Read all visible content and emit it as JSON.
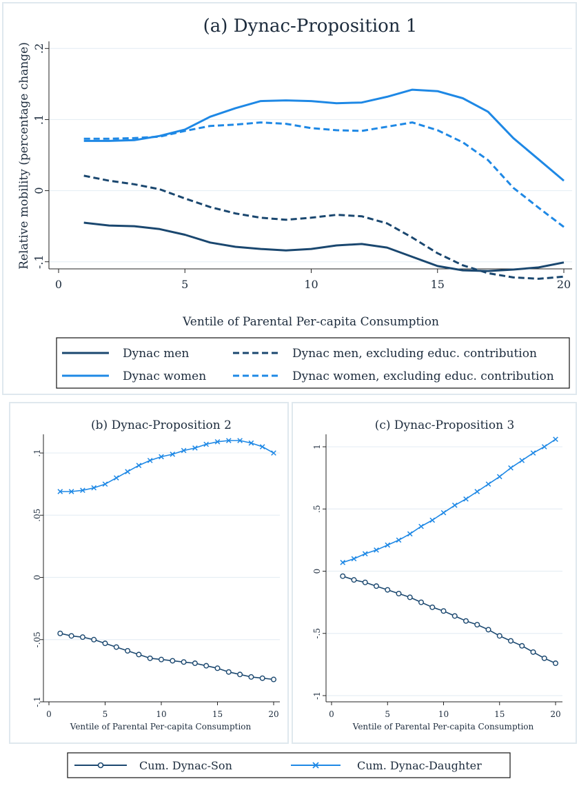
{
  "colors": {
    "men": "#1a476f",
    "women": "#1e88e5",
    "grid": "#e6eef4",
    "panel_border": "#dfe8ee",
    "axis": "#222222"
  },
  "chart_data": [
    {
      "id": "a",
      "type": "line",
      "title": "(a) Dynac-Proposition 1",
      "xlabel": "Ventile of Parental Per-capita Consumption",
      "ylabel": "Relative mobility (percentage change)",
      "xlim": [
        0,
        20
      ],
      "ylim": [
        -0.11,
        0.21
      ],
      "xticks": [
        0,
        5,
        10,
        15,
        20
      ],
      "xtick_labels": [
        "0",
        "5",
        "10",
        "15",
        "20"
      ],
      "yticks": [
        -0.1,
        0,
        0.1,
        0.2
      ],
      "ytick_labels": [
        "-.1",
        "0",
        ".1",
        ".2"
      ],
      "grid": true,
      "legend_position": "bottom",
      "x": [
        1,
        2,
        3,
        4,
        5,
        6,
        7,
        8,
        9,
        10,
        11,
        12,
        13,
        14,
        15,
        16,
        17,
        18,
        19,
        20
      ],
      "series": [
        {
          "name": "Dynac men",
          "color_key": "men",
          "dash": "solid",
          "values": [
            -0.045,
            -0.049,
            -0.05,
            -0.054,
            -0.062,
            -0.073,
            -0.079,
            -0.082,
            -0.084,
            -0.082,
            -0.077,
            -0.075,
            -0.08,
            -0.093,
            -0.106,
            -0.112,
            -0.113,
            -0.111,
            -0.108,
            -0.101
          ]
        },
        {
          "name": "Dynac women",
          "color_key": "women",
          "dash": "solid",
          "values": [
            0.07,
            0.07,
            0.071,
            0.077,
            0.086,
            0.104,
            0.116,
            0.126,
            0.127,
            0.126,
            0.123,
            0.124,
            0.132,
            0.142,
            0.14,
            0.13,
            0.111,
            0.074,
            0.044,
            0.014
          ]
        },
        {
          "name": "Dynac men, excluding educ. contribution",
          "color_key": "men",
          "dash": "dashed",
          "values": [
            0.021,
            0.014,
            0.009,
            0.002,
            -0.011,
            -0.023,
            -0.032,
            -0.038,
            -0.041,
            -0.038,
            -0.034,
            -0.036,
            -0.046,
            -0.066,
            -0.088,
            -0.105,
            -0.116,
            -0.122,
            -0.124,
            -0.121
          ]
        },
        {
          "name": "Dynac women, excluding educ. contribution",
          "color_key": "women",
          "dash": "dashed",
          "values": [
            0.073,
            0.073,
            0.074,
            0.076,
            0.084,
            0.091,
            0.093,
            0.096,
            0.094,
            0.088,
            0.085,
            0.084,
            0.09,
            0.096,
            0.085,
            0.068,
            0.043,
            0.004,
            -0.024,
            -0.051
          ]
        }
      ]
    },
    {
      "id": "b",
      "type": "line",
      "title": "(b) Dynac-Proposition 2",
      "xlabel": "Ventile of Parental Per-capita Consumption",
      "ylabel": "",
      "xlim": [
        0,
        20
      ],
      "ylim": [
        -0.1,
        0.115
      ],
      "xticks": [
        0,
        5,
        10,
        15,
        20
      ],
      "xtick_labels": [
        "0",
        "5",
        "10",
        "15",
        "20"
      ],
      "yticks": [
        -0.1,
        -0.05,
        0,
        0.05,
        0.1
      ],
      "ytick_labels": [
        "-.1",
        "-.05",
        "0",
        ".05",
        ".1"
      ],
      "grid": true,
      "x": [
        1,
        2,
        3,
        4,
        5,
        6,
        7,
        8,
        9,
        10,
        11,
        12,
        13,
        14,
        15,
        16,
        17,
        18,
        19,
        20
      ],
      "series": [
        {
          "name": "Cum. Dynac-Son",
          "color_key": "men",
          "marker": "circle",
          "values": [
            -0.045,
            -0.047,
            -0.048,
            -0.05,
            -0.053,
            -0.056,
            -0.059,
            -0.062,
            -0.065,
            -0.066,
            -0.067,
            -0.068,
            -0.069,
            -0.071,
            -0.073,
            -0.076,
            -0.078,
            -0.08,
            -0.081,
            -0.082
          ]
        },
        {
          "name": "Cum. Dynac-Daughter",
          "color_key": "women",
          "marker": "x",
          "values": [
            0.069,
            0.069,
            0.07,
            0.072,
            0.075,
            0.08,
            0.085,
            0.09,
            0.094,
            0.097,
            0.099,
            0.102,
            0.104,
            0.107,
            0.109,
            0.11,
            0.11,
            0.108,
            0.105,
            0.1
          ]
        }
      ]
    },
    {
      "id": "c",
      "type": "line",
      "title": "(c) Dynac-Proposition 3",
      "xlabel": "Ventile of Parental Per-capita Consumption",
      "ylabel": "",
      "xlim": [
        0,
        20
      ],
      "ylim": [
        -1.05,
        1.1
      ],
      "xticks": [
        0,
        5,
        10,
        15,
        20
      ],
      "xtick_labels": [
        "0",
        "5",
        "10",
        "15",
        "20"
      ],
      "yticks": [
        -1,
        -0.5,
        0,
        0.5,
        1
      ],
      "ytick_labels": [
        "-1",
        "-.5",
        "0",
        ".5",
        "1"
      ],
      "grid": true,
      "x": [
        1,
        2,
        3,
        4,
        5,
        6,
        7,
        8,
        9,
        10,
        11,
        12,
        13,
        14,
        15,
        16,
        17,
        18,
        19,
        20
      ],
      "series": [
        {
          "name": "Cum. Dynac-Son",
          "color_key": "men",
          "marker": "circle",
          "values": [
            -0.04,
            -0.07,
            -0.09,
            -0.12,
            -0.15,
            -0.18,
            -0.21,
            -0.25,
            -0.29,
            -0.32,
            -0.36,
            -0.4,
            -0.43,
            -0.47,
            -0.52,
            -0.56,
            -0.6,
            -0.65,
            -0.7,
            -0.74
          ]
        },
        {
          "name": "Cum. Dynac-Daughter",
          "color_key": "women",
          "marker": "x",
          "values": [
            0.07,
            0.1,
            0.14,
            0.17,
            0.21,
            0.25,
            0.3,
            0.36,
            0.41,
            0.47,
            0.53,
            0.58,
            0.64,
            0.7,
            0.76,
            0.83,
            0.89,
            0.95,
            1.0,
            1.06
          ]
        }
      ]
    }
  ],
  "legend_top": [
    {
      "label": "Dynac men",
      "color_key": "men",
      "dash": "solid"
    },
    {
      "label": "Dynac men, excluding educ. contribution",
      "color_key": "men",
      "dash": "dashed"
    },
    {
      "label": "Dynac women",
      "color_key": "women",
      "dash": "solid"
    },
    {
      "label": "Dynac women, excluding educ. contribution",
      "color_key": "women",
      "dash": "dashed"
    }
  ],
  "legend_bottom": [
    {
      "label": "Cum. Dynac-Son",
      "color_key": "men",
      "marker": "circle"
    },
    {
      "label": "Cum. Dynac-Daughter",
      "color_key": "women",
      "marker": "x"
    }
  ]
}
